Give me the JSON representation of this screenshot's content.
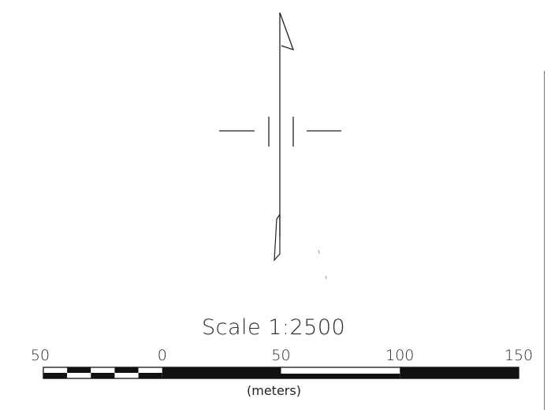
{
  "scale": {
    "title": "Scale 1:2500",
    "unit": "(meters)",
    "ticks": [
      {
        "label": "50",
        "value": -50
      },
      {
        "label": "0",
        "value": 0
      },
      {
        "label": "50",
        "value": 50
      },
      {
        "label": "100",
        "value": 100
      },
      {
        "label": "150",
        "value": 150
      }
    ],
    "range": [
      -50,
      150
    ],
    "bar_colors": {
      "dark": "#111111",
      "light": "#ffffff"
    }
  },
  "north_arrow": {
    "symbol": "north-arrow"
  }
}
